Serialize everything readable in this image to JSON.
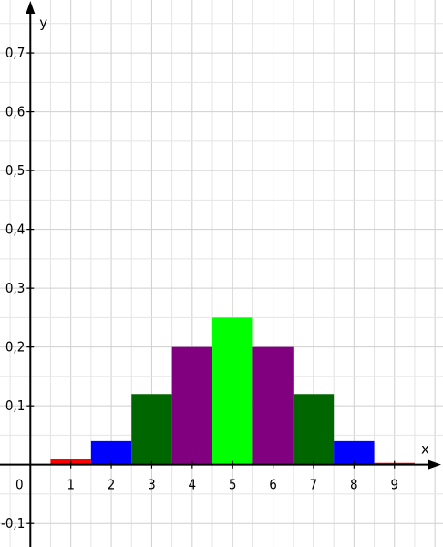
{
  "chart_data": {
    "type": "bar",
    "title": "",
    "xlabel": "x",
    "ylabel": "y",
    "origin_label": "0",
    "xlim": [
      -0.75,
      10.2
    ],
    "ylim": [
      -0.14,
      0.79
    ],
    "x_ticks": [
      {
        "value": 1,
        "label": "1"
      },
      {
        "value": 2,
        "label": "2"
      },
      {
        "value": 3,
        "label": "3"
      },
      {
        "value": 4,
        "label": "4"
      },
      {
        "value": 5,
        "label": "5"
      },
      {
        "value": 6,
        "label": "6"
      },
      {
        "value": 7,
        "label": "7"
      },
      {
        "value": 8,
        "label": "8"
      },
      {
        "value": 9,
        "label": "9"
      }
    ],
    "y_ticks": [
      {
        "value": 0.7,
        "label": "0,7"
      },
      {
        "value": 0.6,
        "label": "0,6"
      },
      {
        "value": 0.5,
        "label": "0,5"
      },
      {
        "value": 0.4,
        "label": "0,4"
      },
      {
        "value": 0.3,
        "label": "0,3"
      },
      {
        "value": 0.2,
        "label": "0,2"
      },
      {
        "value": 0.1,
        "label": "0,1"
      },
      {
        "value": -0.1,
        "label": "-0,1"
      }
    ],
    "grid": true,
    "bars": [
      {
        "x": 1,
        "value": 0.01,
        "color": "#ff0000"
      },
      {
        "x": 2,
        "value": 0.04,
        "color": "#0000ff"
      },
      {
        "x": 3,
        "value": 0.12,
        "color": "#006600"
      },
      {
        "x": 4,
        "value": 0.2,
        "color": "#800080"
      },
      {
        "x": 5,
        "value": 0.25,
        "color": "#00ff00"
      },
      {
        "x": 6,
        "value": 0.2,
        "color": "#800080"
      },
      {
        "x": 7,
        "value": 0.12,
        "color": "#006600"
      },
      {
        "x": 8,
        "value": 0.04,
        "color": "#0000ff"
      },
      {
        "x": 9,
        "value": 0.003,
        "color": "#ff0000"
      }
    ]
  }
}
